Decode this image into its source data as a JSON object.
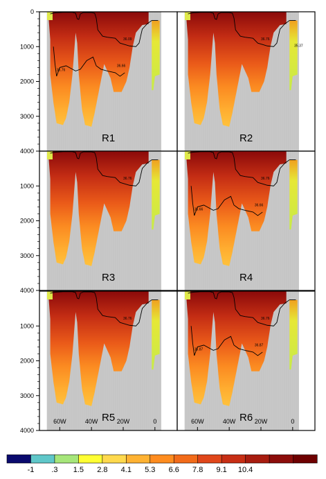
{
  "chart_data": {
    "type": "heatmap",
    "y_axis": {
      "ticks": [
        "0",
        "1000",
        "2000",
        "3000",
        "4000"
      ],
      "ylim": [
        4000,
        0
      ],
      "inverted": true
    },
    "x_axis": {
      "ticks": [
        "60W",
        "40W",
        "20W",
        "0"
      ],
      "tick_values": [
        -60,
        -40,
        -20,
        0
      ],
      "xlim": [
        -70,
        10
      ]
    },
    "panels": [
      {
        "label": "R1",
        "contour_labels": [
          "36.09",
          "36.76",
          "36.66"
        ],
        "deep_contour": true
      },
      {
        "label": "R2",
        "contour_labels": [
          "36.76",
          "35.37"
        ],
        "deep_contour": false
      },
      {
        "label": "R3",
        "contour_labels": [
          "36.76"
        ],
        "deep_contour": false
      },
      {
        "label": "R4",
        "contour_labels": [
          "36.76",
          "36.66",
          "36.66"
        ],
        "deep_contour": true
      },
      {
        "label": "R5",
        "contour_labels": [
          "36.76"
        ],
        "deep_contour": false
      },
      {
        "label": "R6",
        "contour_labels": [
          "36.76",
          "36.87",
          "36.87"
        ],
        "deep_contour": true
      }
    ],
    "colorbar": {
      "labels": [
        "-1",
        ".3",
        "1.5",
        "2.8",
        "4.1",
        "5.3",
        "6.6",
        "7.8",
        "9.1",
        "10.4"
      ],
      "colors": [
        "#0a0a6e",
        "#5fc7c9",
        "#a6e67a",
        "#ffff33",
        "#ffd94d",
        "#ffb232",
        "#ff8c1f",
        "#f26b19",
        "#e0461a",
        "#c72e14",
        "#a81c0f",
        "#8c0d0a",
        "#6e0000"
      ]
    }
  }
}
